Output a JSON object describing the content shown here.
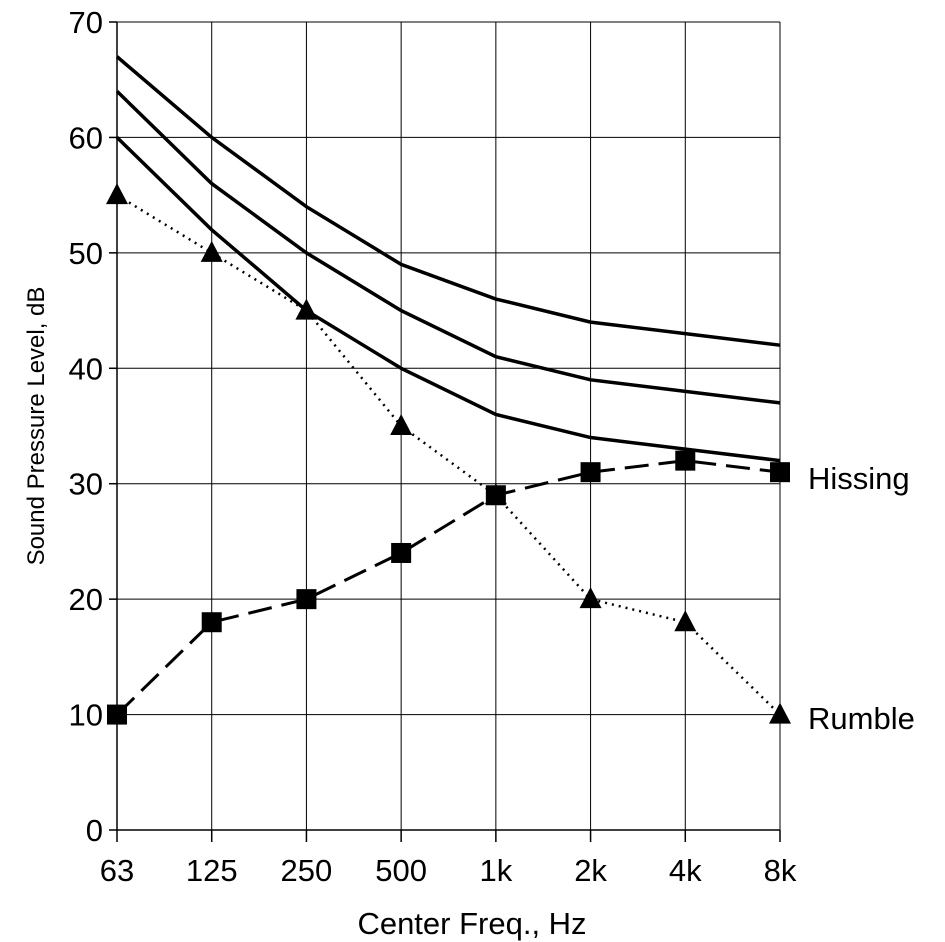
{
  "chart_data": {
    "type": "line",
    "title": "",
    "xlabel": "Center Freq., Hz",
    "ylabel": "Sound Pressure Level, dB",
    "categories": [
      "63",
      "125",
      "250",
      "500",
      "1k",
      "2k",
      "4k",
      "8k"
    ],
    "ylim": [
      0,
      70
    ],
    "yticks": [
      0,
      10,
      20,
      30,
      40,
      50,
      60,
      70
    ],
    "grid": true,
    "legend": "none",
    "series": [
      {
        "name": "",
        "style": "solid",
        "values": [
          67,
          60,
          54,
          49,
          46,
          44,
          43,
          42
        ]
      },
      {
        "name": "",
        "style": "solid",
        "values": [
          64,
          56,
          50,
          45,
          41,
          39,
          38,
          37
        ]
      },
      {
        "name": "",
        "style": "solid",
        "values": [
          60,
          52,
          45,
          40,
          36,
          34,
          33,
          32
        ]
      },
      {
        "name": "Hissing",
        "style": "dashed",
        "marker": "square",
        "values": [
          10,
          18,
          20,
          24,
          29,
          31,
          32,
          31
        ]
      },
      {
        "name": "Rumble",
        "style": "dotted",
        "marker": "triangle",
        "values": [
          55,
          50,
          45,
          35,
          29,
          20,
          18,
          10
        ]
      }
    ]
  }
}
